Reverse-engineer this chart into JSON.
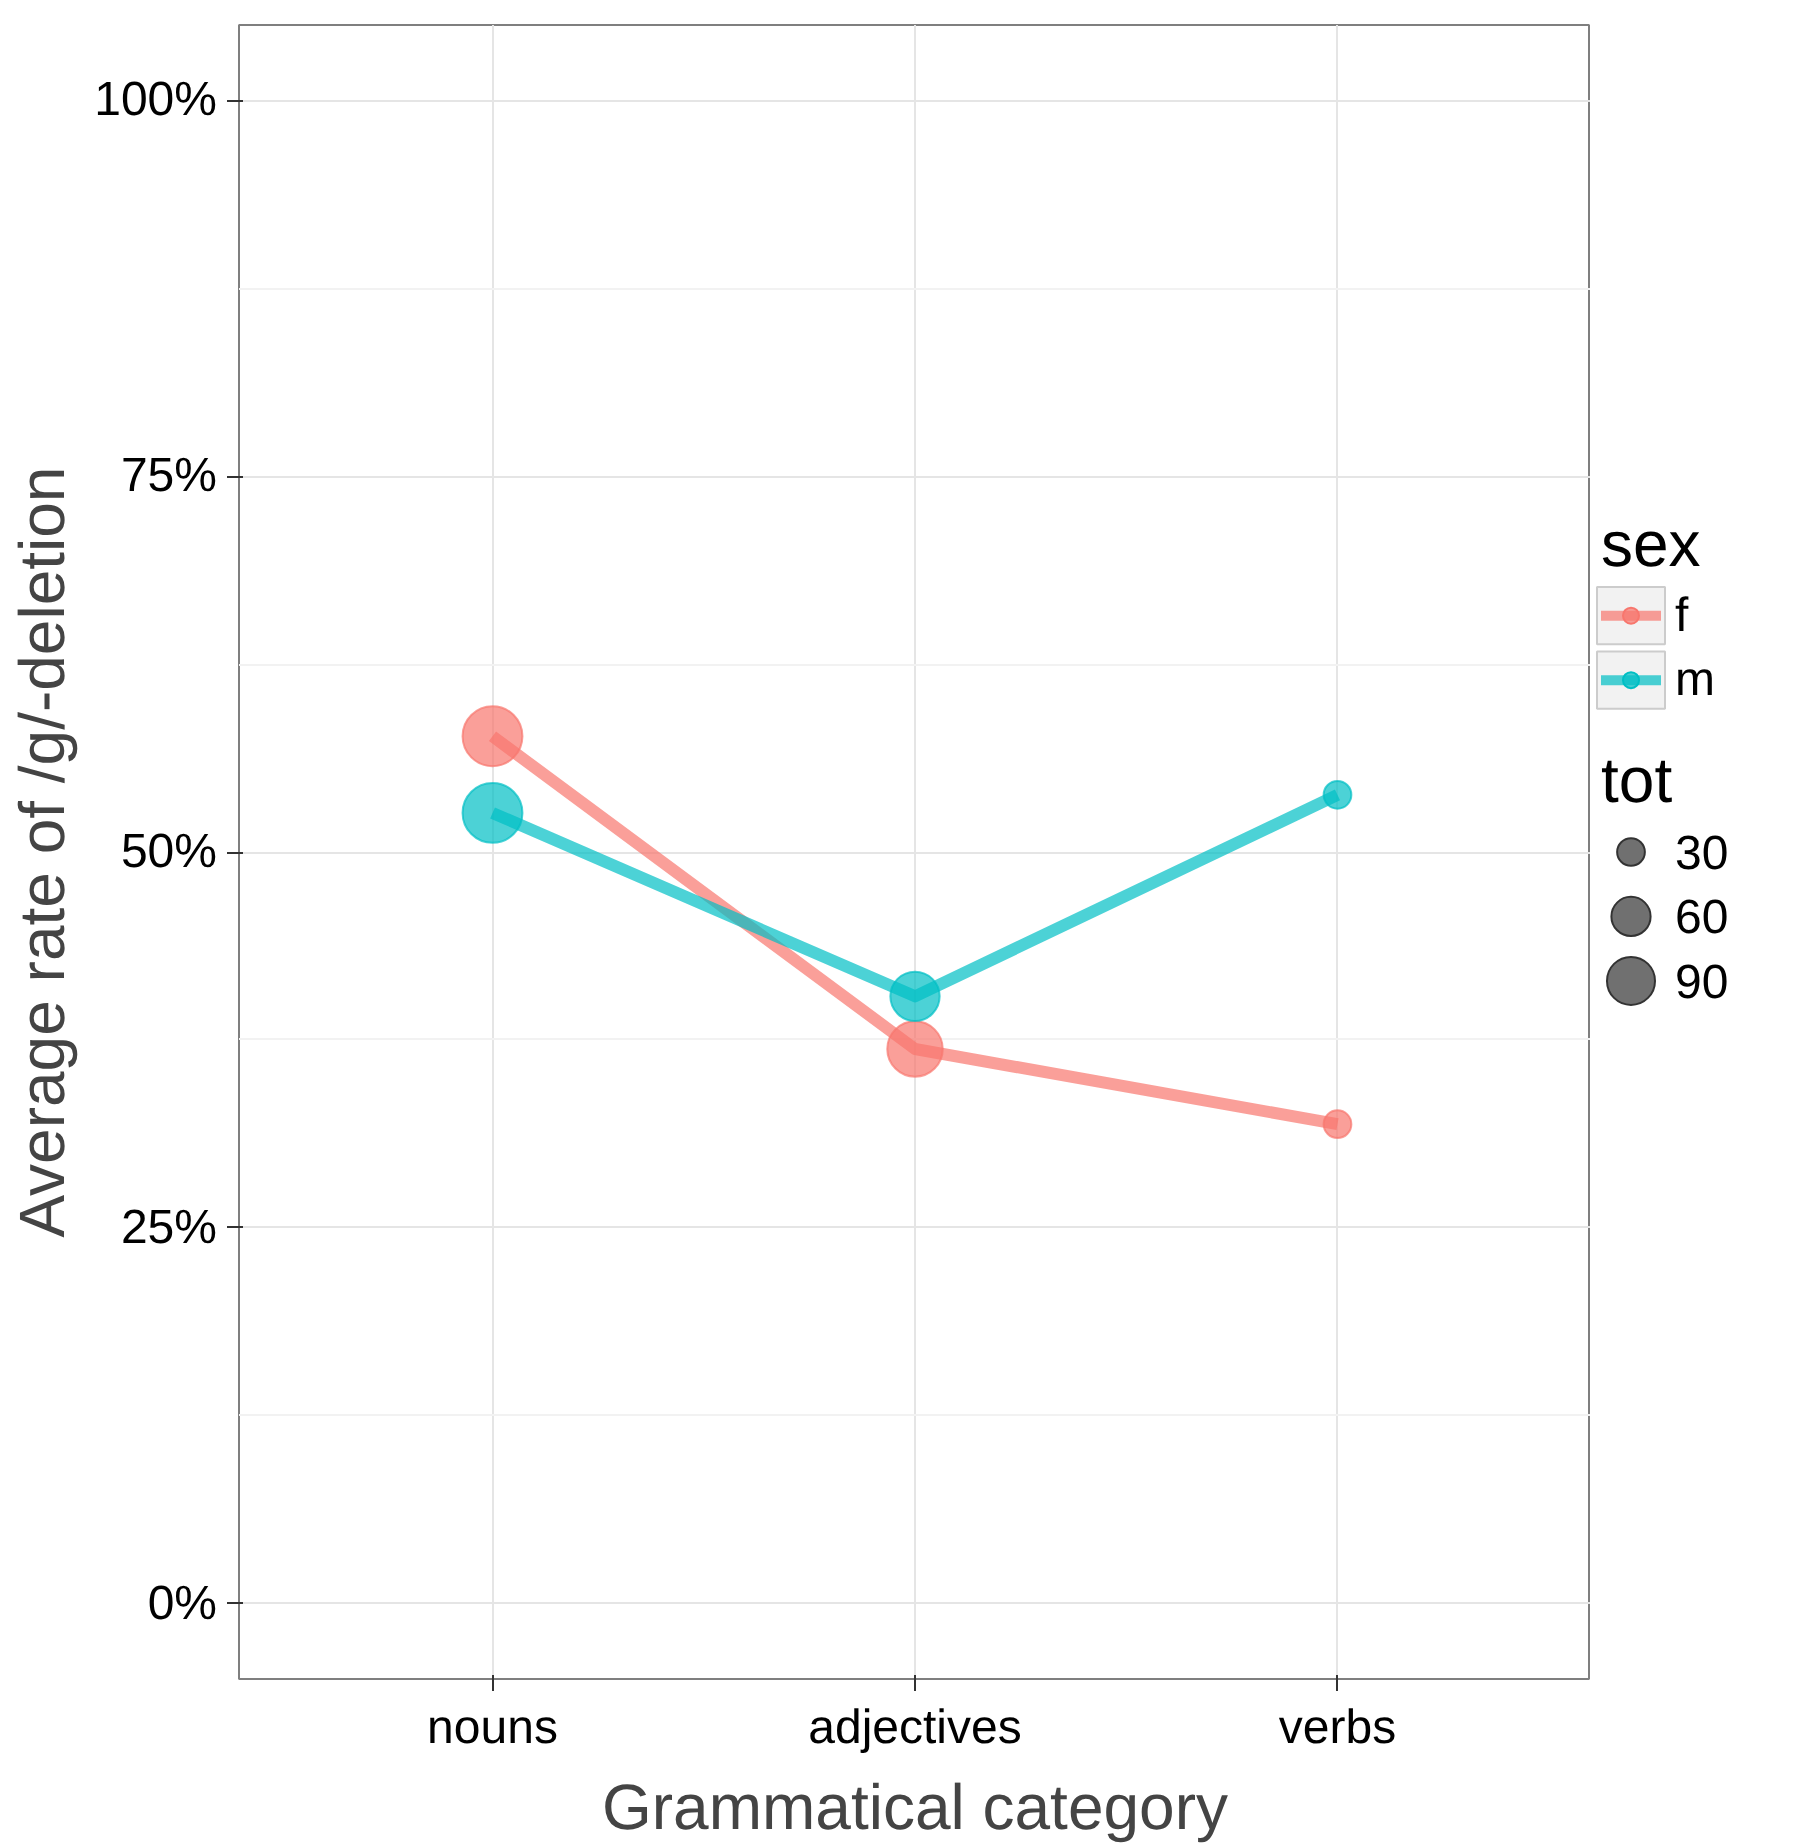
{
  "chart_data": {
    "type": "bubble",
    "xlabel": "Grammatical category",
    "ylabel": "Average rate of /g/-deletion",
    "categories": [
      "nouns",
      "adjectives",
      "verbs"
    ],
    "series": [
      {
        "name": "f",
        "type": "line",
        "marker": "none",
        "color": "#f8766d",
        "values": [
          57.7,
          36.9,
          31.9
        ]
      },
      {
        "name": "m",
        "type": "line",
        "marker": "none",
        "color": "#00bfc4",
        "values": [
          52.6,
          40.4,
          53.8
        ]
      },
      {
        "color": "#f8766d",
        "values": [
          57.7,
          36.9,
          31.9
        ],
        "sizes": [
          140,
          120,
          30
        ]
      },
      {
        "color": "#00bfc4",
        "values": [
          52.6,
          40.4,
          53.8
        ],
        "sizes": [
          140,
          95,
          30
        ]
      }
    ],
    "marker": "circle",
    "legend_title": "sex",
    "annotations": [
      "tot"
    ],
    "size_legend": [
      30,
      60,
      90
    ],
    "ylim": [
      -5,
      105
    ],
    "yticks": [
      {
        "value": 0,
        "label": "0%"
      },
      {
        "value": 25,
        "label": "25%"
      },
      {
        "value": 50,
        "label": "50%"
      },
      {
        "value": 75,
        "label": "75%"
      },
      {
        "value": 100,
        "label": "100%"
      }
    ],
    "grid": true,
    "legend": "right"
  }
}
